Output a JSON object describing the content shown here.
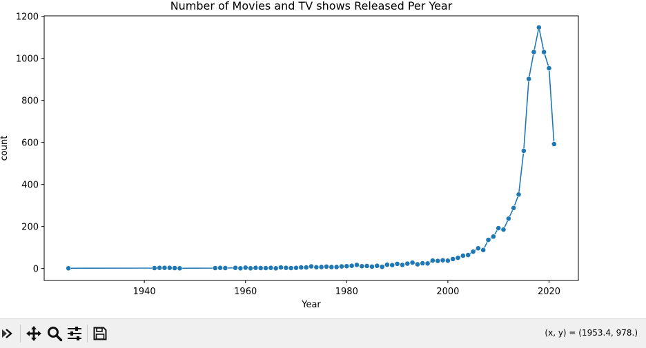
{
  "chart_data": {
    "type": "line",
    "title": "Number of Movies and TV shows Released Per Year",
    "xlabel": "Year",
    "ylabel": "count",
    "xlim": [
      1920.2,
      2025.8
    ],
    "ylim": [
      -57,
      1202
    ],
    "xticks": [
      1940,
      1960,
      1980,
      2000,
      2020
    ],
    "yticks": [
      0,
      200,
      400,
      600,
      800,
      1000,
      1200
    ],
    "grid": false,
    "legend": "none",
    "marker": "circle",
    "color": "#1f77b4",
    "series": [
      {
        "x": [
          1925,
          1942,
          1943,
          1944,
          1945,
          1946,
          1947,
          1954,
          1955,
          1956,
          1958,
          1959,
          1960,
          1961,
          1962,
          1963,
          1964,
          1965,
          1966,
          1967,
          1968,
          1969,
          1970,
          1971,
          1972,
          1973,
          1974,
          1975,
          1976,
          1977,
          1978,
          1979,
          1980,
          1981,
          1982,
          1983,
          1984,
          1985,
          1986,
          1987,
          1988,
          1989,
          1990,
          1991,
          1992,
          1993,
          1994,
          1995,
          1996,
          1997,
          1998,
          1999,
          2000,
          2001,
          2002,
          2003,
          2004,
          2005,
          2006,
          2007,
          2008,
          2009,
          2010,
          2011,
          2012,
          2013,
          2014,
          2015,
          2016,
          2017,
          2018,
          2019,
          2020,
          2021
        ],
        "y": [
          1,
          2,
          3,
          3,
          3,
          2,
          1,
          2,
          3,
          2,
          3,
          1,
          4,
          1,
          3,
          2,
          2,
          3,
          1,
          5,
          3,
          2,
          3,
          5,
          5,
          10,
          6,
          7,
          9,
          7,
          7,
          10,
          11,
          13,
          17,
          11,
          12,
          9,
          13,
          8,
          18,
          16,
          22,
          17,
          23,
          28,
          20,
          25,
          24,
          38,
          36,
          39,
          37,
          45,
          51,
          61,
          64,
          80,
          96,
          88,
          136,
          152,
          192,
          185,
          237,
          288,
          352,
          560,
          902,
          1030,
          1147,
          1030,
          953,
          592
        ]
      }
    ]
  },
  "toolbar": {
    "buttons": [
      "forward-icon",
      "pan-icon",
      "zoom-icon",
      "configure-icon",
      "save-icon"
    ],
    "coords_text": "(x, y) = (1953.4, 978.)"
  }
}
